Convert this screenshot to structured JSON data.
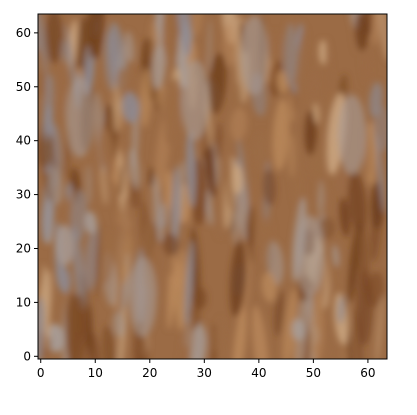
{
  "figure": {
    "kind": "image-plot",
    "axes_image": {
      "description_colors": {
        "dominant_palette": [
          "#9b6b45",
          "#b8875a",
          "#7c4a25",
          "#a89d98",
          "#c9a47e",
          "#6e3e1c",
          "#8e8a92"
        ]
      },
      "pixel_grid": {
        "columns": 64,
        "rows": 64
      }
    },
    "x_axis": {
      "ticks": [
        {
          "value": 0,
          "label": "0"
        },
        {
          "value": 10,
          "label": "10"
        },
        {
          "value": 20,
          "label": "20"
        },
        {
          "value": 30,
          "label": "30"
        },
        {
          "value": 40,
          "label": "40"
        },
        {
          "value": 50,
          "label": "50"
        },
        {
          "value": 60,
          "label": "60"
        }
      ],
      "range": [
        -0.5,
        63.5
      ]
    },
    "y_axis": {
      "ticks": [
        {
          "value": 0,
          "label": "0"
        },
        {
          "value": 10,
          "label": "10"
        },
        {
          "value": 20,
          "label": "20"
        },
        {
          "value": 30,
          "label": "30"
        },
        {
          "value": 40,
          "label": "40"
        },
        {
          "value": 50,
          "label": "50"
        },
        {
          "value": 60,
          "label": "60"
        }
      ],
      "range": [
        63.5,
        -0.5
      ],
      "inverted": true
    }
  }
}
